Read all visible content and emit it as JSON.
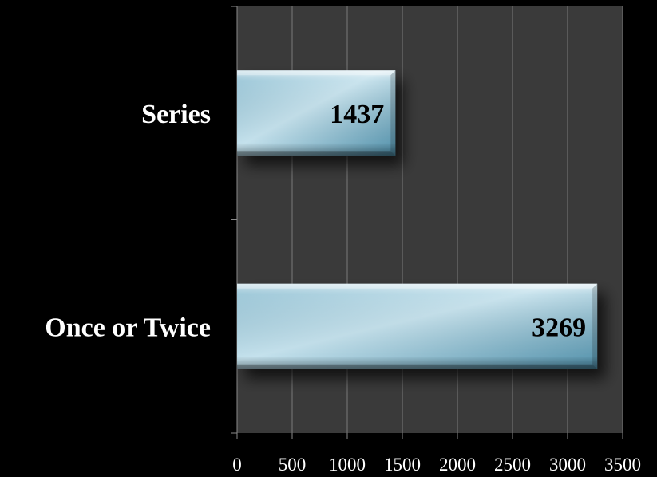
{
  "chart_data": {
    "type": "bar",
    "orientation": "horizontal",
    "categories": [
      "Series",
      "Once or Twice"
    ],
    "values": [
      1437,
      3269
    ],
    "data_labels": [
      "1437",
      "3269"
    ],
    "xlim": [
      0,
      3500
    ],
    "x_ticks": [
      0,
      500,
      1000,
      1500,
      2000,
      2500,
      3000,
      3500
    ],
    "x_tick_labels": [
      "0",
      "500",
      "1000",
      "1500",
      "2000",
      "2500",
      "3000",
      "3500"
    ],
    "title": "",
    "xlabel": "",
    "ylabel": "",
    "grid": "vertical",
    "legend": "none",
    "colors": {
      "page_background": "#000000",
      "plot_background": "#3a3a3a",
      "gridline": "#7a7a7a",
      "axis": "#8a8a8a",
      "bar_light": "#c4e1ec",
      "bar_mid": "#8fbfd2",
      "bar_dark": "#4f8ea8",
      "category_text": "#ffffff",
      "tick_text": "#ffffff",
      "data_label_text": "#000000"
    }
  }
}
